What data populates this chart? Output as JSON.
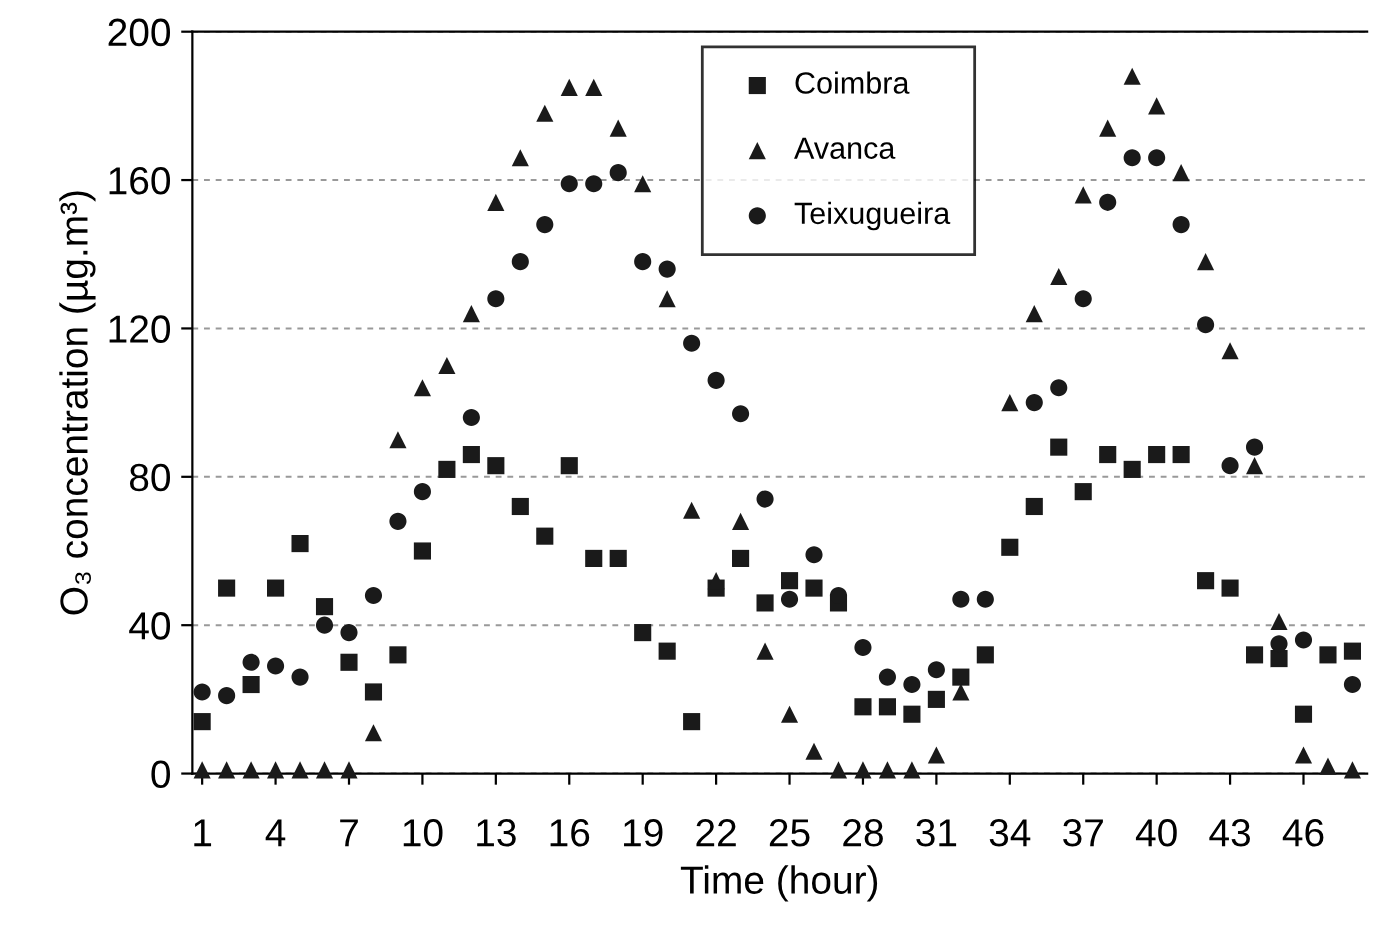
{
  "chart_data": {
    "type": "scatter",
    "xlabel": "Time (hour)",
    "ylabel": "O₃ concentration (µg.m³)",
    "x": [
      1,
      2,
      3,
      4,
      5,
      6,
      7,
      8,
      9,
      10,
      11,
      12,
      13,
      14,
      15,
      16,
      17,
      18,
      19,
      20,
      21,
      22,
      23,
      24,
      25,
      26,
      27,
      28,
      29,
      30,
      31,
      32,
      33,
      34,
      35,
      36,
      37,
      38,
      39,
      40,
      41,
      42,
      43,
      44,
      45,
      46,
      47,
      48
    ],
    "xlim": [
      0.6,
      48.6
    ],
    "xticks": [
      1,
      4,
      7,
      10,
      13,
      16,
      19,
      22,
      25,
      28,
      31,
      34,
      37,
      40,
      43,
      46
    ],
    "ylim": [
      0,
      200
    ],
    "yticks": [
      0,
      40,
      80,
      120,
      160,
      200
    ],
    "grid": "y",
    "legend": "top",
    "series": [
      {
        "name": "Coimbra",
        "color": "#1a1a1a",
        "marker": "square",
        "values": [
          14,
          50,
          24,
          50,
          62,
          45,
          30,
          22,
          32,
          60,
          82,
          86,
          83,
          72,
          64,
          83,
          58,
          58,
          38,
          33,
          14,
          50,
          58,
          46,
          52,
          50,
          46,
          18,
          18,
          16,
          20,
          26,
          32,
          61,
          72,
          88,
          76,
          86,
          82,
          86,
          86,
          52,
          50,
          32,
          31,
          16,
          32,
          33
        ]
      },
      {
        "name": "Avanca",
        "color": "#1a1a1a",
        "marker": "triangle",
        "values": [
          1,
          1,
          1,
          1,
          1,
          1,
          1,
          11,
          90,
          104,
          110,
          124,
          154,
          166,
          178,
          185,
          185,
          174,
          159,
          128,
          71,
          52,
          68,
          33,
          16,
          6,
          1,
          1,
          1,
          1,
          5,
          22,
          null,
          100,
          124,
          134,
          156,
          174,
          188,
          180,
          162,
          138,
          114,
          83,
          41,
          5,
          2,
          1
        ]
      },
      {
        "name": "Teixugueira",
        "color": "#1a1a1a",
        "marker": "circle",
        "values": [
          22,
          21,
          30,
          29,
          26,
          40,
          38,
          48,
          68,
          76,
          null,
          96,
          128,
          138,
          148,
          159,
          159,
          162,
          138,
          136,
          116,
          106,
          97,
          74,
          47,
          59,
          48,
          34,
          26,
          24,
          28,
          47,
          47,
          null,
          100,
          104,
          128,
          154,
          166,
          166,
          148,
          121,
          83,
          88,
          35,
          36,
          null,
          24
        ]
      }
    ]
  }
}
